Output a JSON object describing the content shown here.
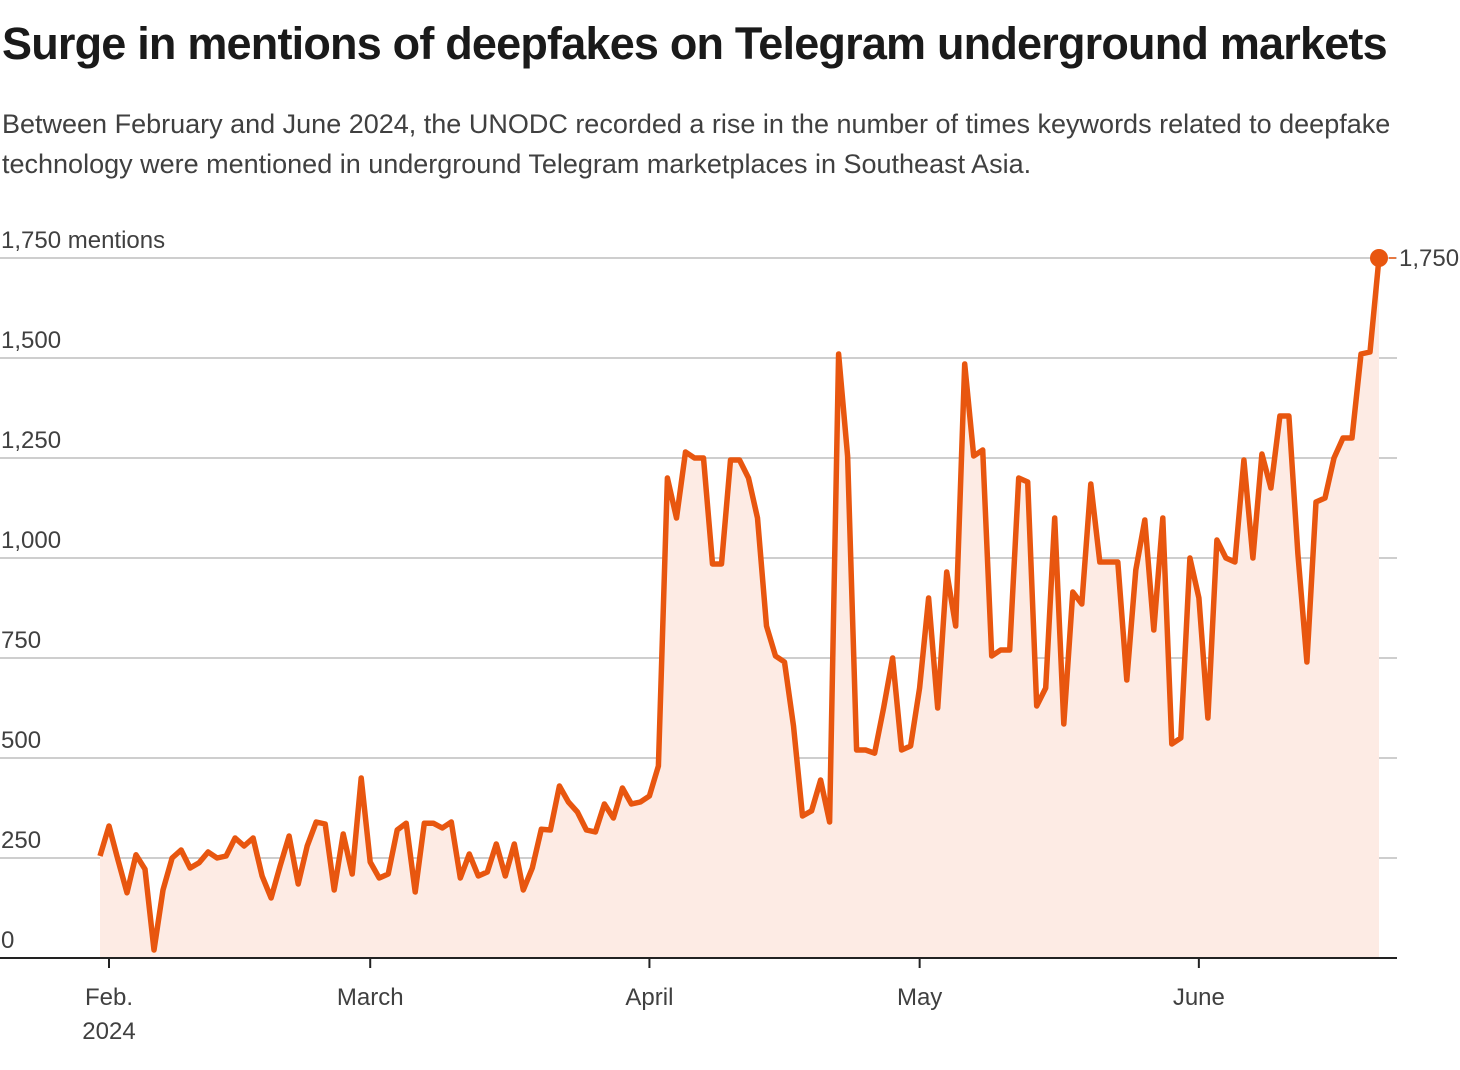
{
  "title": "Surge in mentions of deepfakes on Telegram underground markets",
  "subtitle": "Between February and June 2024, the UNODC recorded a rise in the number of times keywords related to deepfake technology were mentioned in underground Telegram marketplaces in Southeast Asia.",
  "chart_data": {
    "type": "area",
    "title": "Surge in mentions of deepfakes on Telegram underground markets",
    "xlabel": "",
    "ylabel": "",
    "ylim": [
      0,
      1750
    ],
    "y_ticks": [
      {
        "value": 0,
        "label": "0"
      },
      {
        "value": 250,
        "label": "250"
      },
      {
        "value": 500,
        "label": "500"
      },
      {
        "value": 750,
        "label": "750"
      },
      {
        "value": 1000,
        "label": "1,000"
      },
      {
        "value": 1250,
        "label": "1,250"
      },
      {
        "value": 1500,
        "label": "1,500"
      },
      {
        "value": 1750,
        "label": "1,750 mentions"
      }
    ],
    "x_ticks": [
      {
        "date": "2024-02-01",
        "label": "Feb.",
        "sublabel": "2024"
      },
      {
        "date": "2024-03-01",
        "label": "March"
      },
      {
        "date": "2024-04-01",
        "label": "April"
      },
      {
        "date": "2024-05-01",
        "label": "May"
      },
      {
        "date": "2024-06-01",
        "label": "June"
      }
    ],
    "grid": true,
    "colors": {
      "line": "#e8560f",
      "fill": "#fdebe4",
      "grid": "#bdbdbd",
      "axis": "#222222"
    },
    "end_label": "1,750",
    "x": [
      "2024-01-31",
      "2024-02-01",
      "2024-02-02",
      "2024-02-03",
      "2024-02-04",
      "2024-02-05",
      "2024-02-06",
      "2024-02-07",
      "2024-02-08",
      "2024-02-09",
      "2024-02-10",
      "2024-02-11",
      "2024-02-12",
      "2024-02-13",
      "2024-02-14",
      "2024-02-15",
      "2024-02-16",
      "2024-02-17",
      "2024-02-18",
      "2024-02-19",
      "2024-02-20",
      "2024-02-21",
      "2024-02-22",
      "2024-02-23",
      "2024-02-24",
      "2024-02-25",
      "2024-02-26",
      "2024-02-27",
      "2024-02-28",
      "2024-02-29",
      "2024-03-01",
      "2024-03-02",
      "2024-03-03",
      "2024-03-04",
      "2024-03-05",
      "2024-03-06",
      "2024-03-07",
      "2024-03-08",
      "2024-03-09",
      "2024-03-10",
      "2024-03-11",
      "2024-03-12",
      "2024-03-13",
      "2024-03-14",
      "2024-03-15",
      "2024-03-16",
      "2024-03-17",
      "2024-03-18",
      "2024-03-19",
      "2024-03-20",
      "2024-03-21",
      "2024-03-22",
      "2024-03-23",
      "2024-03-24",
      "2024-03-25",
      "2024-03-26",
      "2024-03-27",
      "2024-03-28",
      "2024-03-29",
      "2024-03-30",
      "2024-03-31",
      "2024-04-01",
      "2024-04-02",
      "2024-04-03",
      "2024-04-04",
      "2024-04-05",
      "2024-04-06",
      "2024-04-07",
      "2024-04-08",
      "2024-04-09",
      "2024-04-10",
      "2024-04-11",
      "2024-04-12",
      "2024-04-13",
      "2024-04-14",
      "2024-04-15",
      "2024-04-16",
      "2024-04-17",
      "2024-04-18",
      "2024-04-19",
      "2024-04-20",
      "2024-04-21",
      "2024-04-22",
      "2024-04-23",
      "2024-04-24",
      "2024-04-25",
      "2024-04-26",
      "2024-04-27",
      "2024-04-28",
      "2024-04-29",
      "2024-04-30",
      "2024-05-01",
      "2024-05-02",
      "2024-05-03",
      "2024-05-04",
      "2024-05-05",
      "2024-05-06",
      "2024-05-07",
      "2024-05-08",
      "2024-05-09",
      "2024-05-10",
      "2024-05-11",
      "2024-05-12",
      "2024-05-13",
      "2024-05-14",
      "2024-05-15",
      "2024-05-16",
      "2024-05-17",
      "2024-05-18",
      "2024-05-19",
      "2024-05-20",
      "2024-05-21",
      "2024-05-22",
      "2024-05-23",
      "2024-05-24",
      "2024-05-25",
      "2024-05-26",
      "2024-05-27",
      "2024-05-28",
      "2024-05-29",
      "2024-05-30",
      "2024-05-31",
      "2024-06-01",
      "2024-06-02",
      "2024-06-03",
      "2024-06-04",
      "2024-06-05",
      "2024-06-06",
      "2024-06-07",
      "2024-06-08",
      "2024-06-09",
      "2024-06-10",
      "2024-06-11",
      "2024-06-12",
      "2024-06-13",
      "2024-06-14",
      "2024-06-15",
      "2024-06-16",
      "2024-06-17",
      "2024-06-18",
      "2024-06-19",
      "2024-06-20",
      "2024-06-21"
    ],
    "values": [
      255,
      330,
      245,
      163,
      258,
      222,
      20,
      170,
      250,
      270,
      225,
      238,
      265,
      250,
      255,
      300,
      280,
      300,
      205,
      150,
      230,
      305,
      185,
      280,
      340,
      335,
      170,
      310,
      210,
      450,
      240,
      200,
      210,
      320,
      337,
      165,
      337,
      337,
      325,
      340,
      200,
      260,
      205,
      215,
      285,
      205,
      285,
      170,
      225,
      322,
      320,
      430,
      390,
      365,
      320,
      315,
      385,
      350,
      425,
      385,
      390,
      405,
      480,
      1200,
      1100,
      1265,
      1250,
      1250,
      985,
      985,
      1245,
      1245,
      1200,
      1100,
      830,
      755,
      740,
      580,
      355,
      368,
      445,
      340,
      1510,
      1255,
      520,
      520,
      512,
      625,
      750,
      520,
      530,
      675,
      900,
      625,
      965,
      830,
      1485,
      1255,
      1270,
      755,
      770,
      770,
      1200,
      1190,
      630,
      675,
      1100,
      585,
      915,
      885,
      1185,
      990,
      990,
      990,
      695,
      970,
      1095,
      820,
      1100,
      535,
      550,
      1000,
      900,
      600,
      1045,
      1000,
      990,
      1245,
      1000,
      1260,
      1175,
      1355,
      1355,
      1010,
      740,
      1140,
      1150,
      1250,
      1300,
      1300,
      1510,
      1515,
      1750
    ]
  }
}
